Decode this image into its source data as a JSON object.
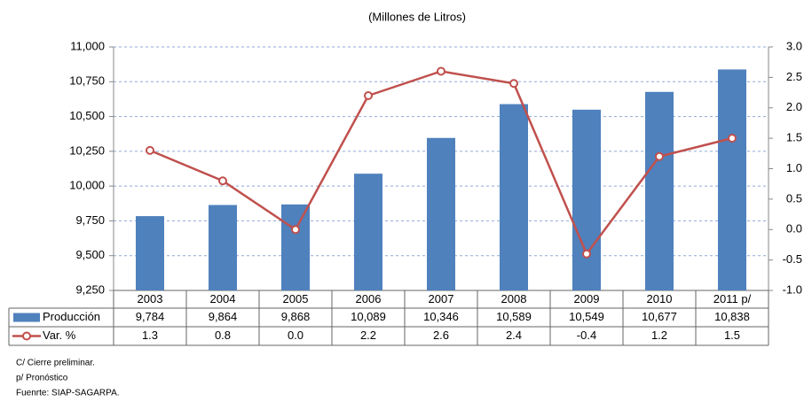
{
  "chart_data": {
    "type": "bar-line",
    "title": "(Millones de Litros)",
    "categories": [
      "2003",
      "2004",
      "2005",
      "2006",
      "2007",
      "2008",
      "2009",
      "2010",
      "2011 p/"
    ],
    "series": [
      {
        "name": "Producción",
        "color": "#4f81bd",
        "type": "bar",
        "values": [
          9784,
          9864,
          9868,
          10089,
          10346,
          10589,
          10549,
          10677,
          10838
        ],
        "value_labels": [
          "9,784",
          "9,864",
          "9,868",
          "10,089",
          "10,346",
          "10,589",
          "10,549",
          "10,677",
          "10,838"
        ]
      },
      {
        "name": "Var. %",
        "color": "#c0504d",
        "type": "line",
        "axis": "y2",
        "values": [
          1.3,
          0.8,
          0.0,
          2.2,
          2.6,
          2.4,
          -0.4,
          1.2,
          1.5
        ],
        "value_labels": [
          "1.3",
          "0.8",
          "0.0",
          "2.2",
          "2.6",
          "2.4",
          "-0.4",
          "1.2",
          "1.5"
        ]
      }
    ],
    "ylim": [
      9250,
      11000
    ],
    "yticks": [
      {
        "value": 9250,
        "label": "9,250"
      },
      {
        "value": 9500,
        "label": "9,500"
      },
      {
        "value": 9750,
        "label": "9,750"
      },
      {
        "value": 10000,
        "label": "10,000"
      },
      {
        "value": 10250,
        "label": "10,250"
      },
      {
        "value": 10500,
        "label": "10,500"
      },
      {
        "value": 10750,
        "label": "10,750"
      },
      {
        "value": 11000,
        "label": "11,000"
      }
    ],
    "y2lim": [
      -1.0,
      3.0
    ],
    "y2ticks": [
      {
        "value": -1.0,
        "label": "-1.0"
      },
      -0.5,
      {
        "value": 0.0,
        "label": "0.0"
      },
      0.5,
      {
        "value": 1.0,
        "label": "1.0"
      },
      1.5,
      {
        "value": 2.0,
        "label": "2.0"
      },
      2.5,
      {
        "value": 3.0,
        "label": "3.0"
      }
    ],
    "grid": true,
    "notes": [
      "C/ Cierre preliminar.",
      "p/ Pronóstico",
      "Fuenrte: SIAP-SAGARPA."
    ]
  }
}
